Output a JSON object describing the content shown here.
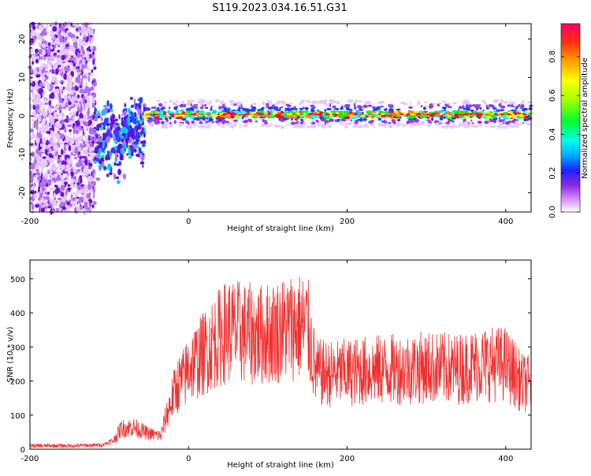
{
  "title": "S119.2023.034.16.51.G31",
  "colors": {
    "snr_line": "#f03030",
    "spectrogram_ridge": [
      "#d000ff",
      "#3060ff",
      "#00ffff",
      "#00ff00",
      "#ffff00",
      "#ff8000",
      "#ff0040"
    ]
  },
  "chart_data": [
    {
      "type": "heatmap",
      "title": "S119.2023.034.16.51.G31",
      "xlabel": "Height of straight line (km)",
      "ylabel": "Frequency (Hz)",
      "xlim": [
        -200,
        432
      ],
      "ylim": [
        -25,
        24
      ],
      "xticks": [
        -200,
        0,
        200,
        400
      ],
      "yticks": [
        -20,
        -10,
        0,
        10,
        20
      ],
      "colorbar": {
        "label": "Normalized spectral amplitude",
        "range": [
          0,
          0.97
        ],
        "ticks": [
          "0.0",
          "0.2",
          "0.4",
          "0.6",
          "0.8"
        ]
      },
      "features": [
        {
          "region": "noise",
          "x_range": [
            -200,
            -118
          ],
          "freq_range": [
            -25,
            24
          ],
          "amplitude": 0.15
        },
        {
          "region": "transition",
          "x_range": [
            -118,
            -55
          ],
          "freq_range": [
            -19,
            5
          ],
          "amplitude": 0.35
        },
        {
          "region": "ridge",
          "x_range": [
            -55,
            432
          ],
          "freq_center": 0,
          "freq_halfwidth": 3.5,
          "peak_amplitude": 0.95
        }
      ]
    },
    {
      "type": "line",
      "xlabel": "Height of straight line (km)",
      "ylabel": "SNR (10 * v/v)",
      "xlim": [
        -200,
        432
      ],
      "ylim": [
        0,
        555
      ],
      "xticks": [
        -200,
        0,
        200,
        400
      ],
      "yticks": [
        0,
        100,
        200,
        300,
        400,
        500
      ],
      "series": [
        {
          "x": [
            -200,
            -150,
            -110,
            -95,
            -85,
            -70,
            -50,
            -35,
            -25,
            -15,
            -5,
            0,
            15,
            30,
            50,
            70,
            90,
            110,
            130,
            150,
            155,
            160,
            180,
            220,
            260,
            300,
            340,
            370,
            400,
            420,
            432
          ],
          "y": [
            10,
            10,
            12,
            25,
            60,
            65,
            45,
            40,
            120,
            185,
            210,
            240,
            270,
            310,
            350,
            340,
            335,
            345,
            360,
            360,
            300,
            225,
            220,
            230,
            235,
            240,
            235,
            250,
            250,
            195,
            190
          ]
        }
      ]
    }
  ]
}
